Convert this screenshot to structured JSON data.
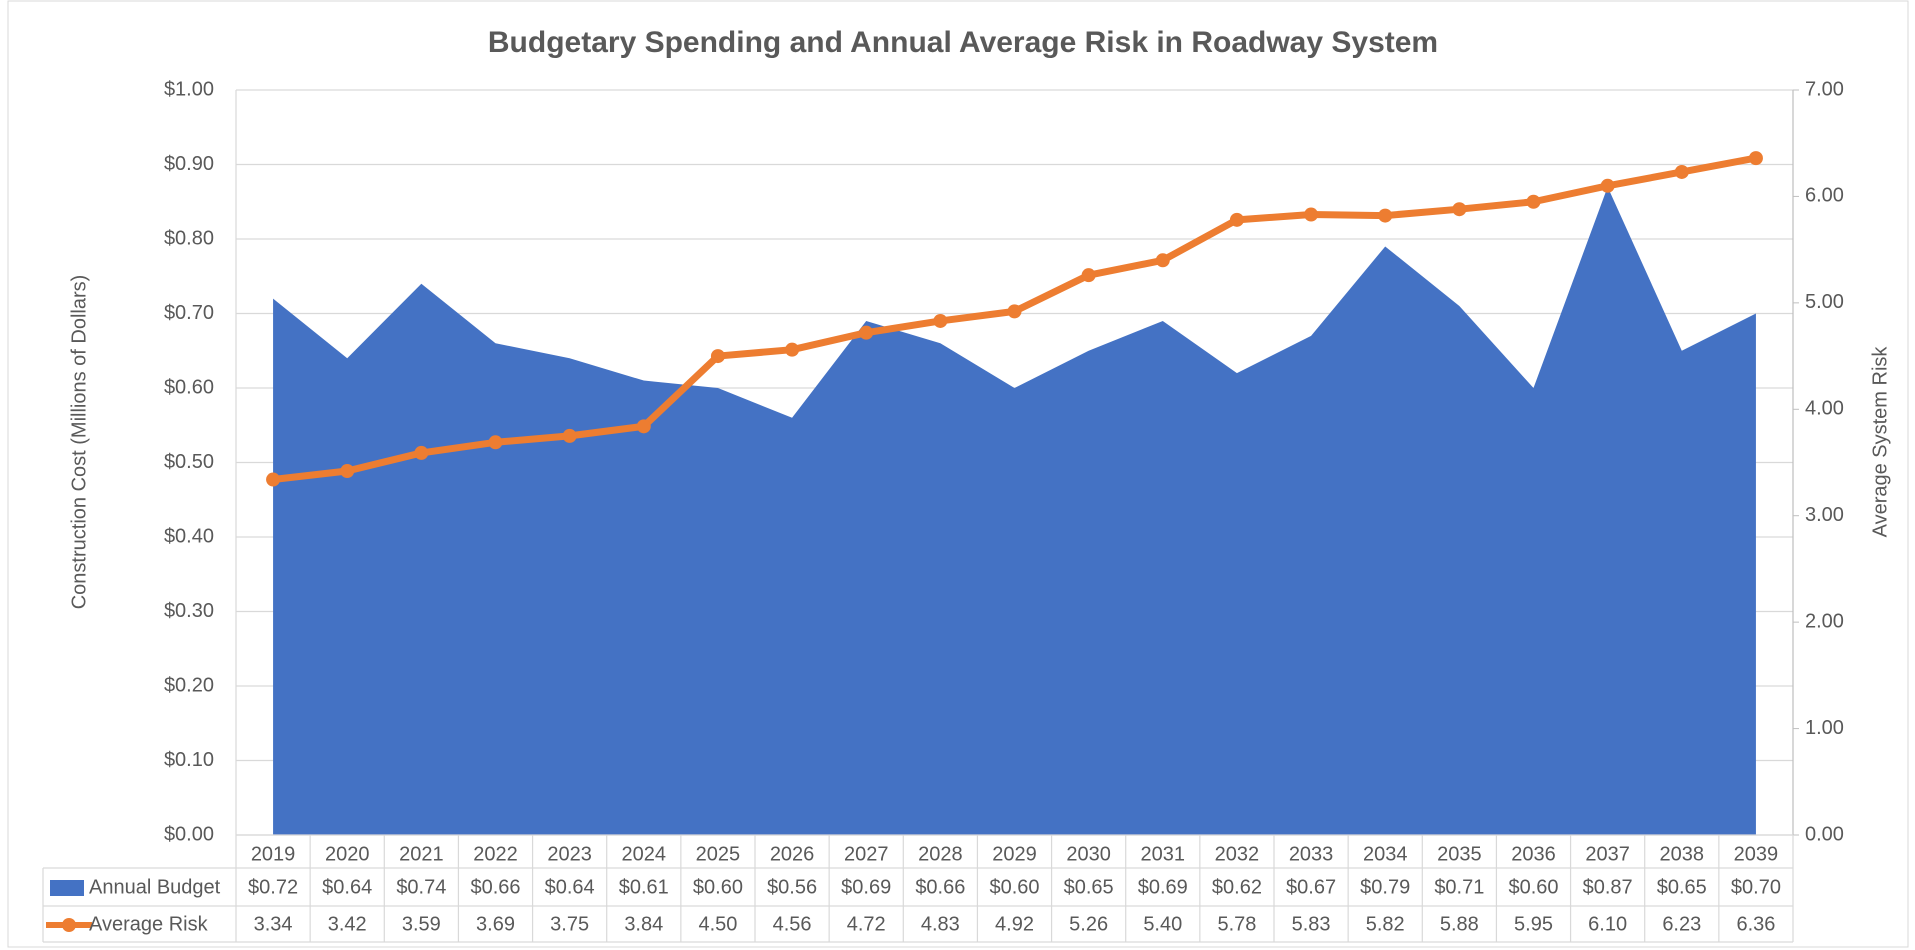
{
  "chart_data": {
    "type": "area-line",
    "title": "Budgetary Spending and Annual Average Risk in Roadway System",
    "y_label": "Construction Cost (Millions of Dollars)",
    "y2_label": "Average System Risk",
    "categories": [
      "2019",
      "2020",
      "2021",
      "2022",
      "2023",
      "2024",
      "2025",
      "2026",
      "2027",
      "2028",
      "2029",
      "2030",
      "2031",
      "2032",
      "2033",
      "2034",
      "2035",
      "2036",
      "2037",
      "2038",
      "2039"
    ],
    "series": [
      {
        "name": "Annual Budget",
        "type": "area",
        "color": "#4472c4",
        "values": [
          0.72,
          0.64,
          0.74,
          0.66,
          0.64,
          0.61,
          0.6,
          0.56,
          0.69,
          0.66,
          0.6,
          0.65,
          0.69,
          0.62,
          0.67,
          0.79,
          0.71,
          0.6,
          0.87,
          0.65,
          0.7
        ],
        "value_labels": [
          "$0.72",
          "$0.64",
          "$0.74",
          "$0.66",
          "$0.64",
          "$0.61",
          "$0.60",
          "$0.56",
          "$0.69",
          "$0.66",
          "$0.60",
          "$0.65",
          "$0.69",
          "$0.62",
          "$0.67",
          "$0.79",
          "$0.71",
          "$0.60",
          "$0.87",
          "$0.65",
          "$0.70"
        ]
      },
      {
        "name": "Average Risk",
        "type": "line",
        "axis": "y2",
        "color": "#ed7d31",
        "values": [
          3.34,
          3.42,
          3.59,
          3.69,
          3.75,
          3.84,
          4.5,
          4.56,
          4.72,
          4.83,
          4.92,
          5.26,
          5.4,
          5.78,
          5.83,
          5.82,
          5.88,
          5.95,
          6.1,
          6.23,
          6.36
        ],
        "value_labels": [
          "3.34",
          "3.42",
          "3.59",
          "3.69",
          "3.75",
          "3.84",
          "4.50",
          "4.56",
          "4.72",
          "4.83",
          "4.92",
          "5.26",
          "5.40",
          "5.78",
          "5.83",
          "5.82",
          "5.88",
          "5.95",
          "6.10",
          "6.23",
          "6.36"
        ]
      }
    ],
    "ylim": [
      0,
      1
    ],
    "yticks": [
      {
        "value": 0,
        "label": "$0.00"
      },
      {
        "value": 0.1,
        "label": "$0.10"
      },
      {
        "value": 0.2,
        "label": "$0.20"
      },
      {
        "value": 0.3,
        "label": "$0.30"
      },
      {
        "value": 0.4,
        "label": "$0.40"
      },
      {
        "value": 0.5,
        "label": "$0.50"
      },
      {
        "value": 0.6,
        "label": "$0.60"
      },
      {
        "value": 0.7,
        "label": "$0.70"
      },
      {
        "value": 0.8,
        "label": "$0.80"
      },
      {
        "value": 0.9,
        "label": "$0.90"
      },
      {
        "value": 1,
        "label": "$1.00"
      }
    ],
    "y2lim": [
      0,
      7
    ],
    "y2ticks": [
      {
        "value": 0,
        "label": "0.00"
      },
      {
        "value": 1,
        "label": "1.00"
      },
      {
        "value": 2,
        "label": "2.00"
      },
      {
        "value": 3,
        "label": "3.00"
      },
      {
        "value": 4,
        "label": "4.00"
      },
      {
        "value": 5,
        "label": "5.00"
      },
      {
        "value": 6,
        "label": "6.00"
      },
      {
        "value": 7,
        "label": "7.00"
      }
    ],
    "grid": true,
    "legend": "data-table"
  }
}
